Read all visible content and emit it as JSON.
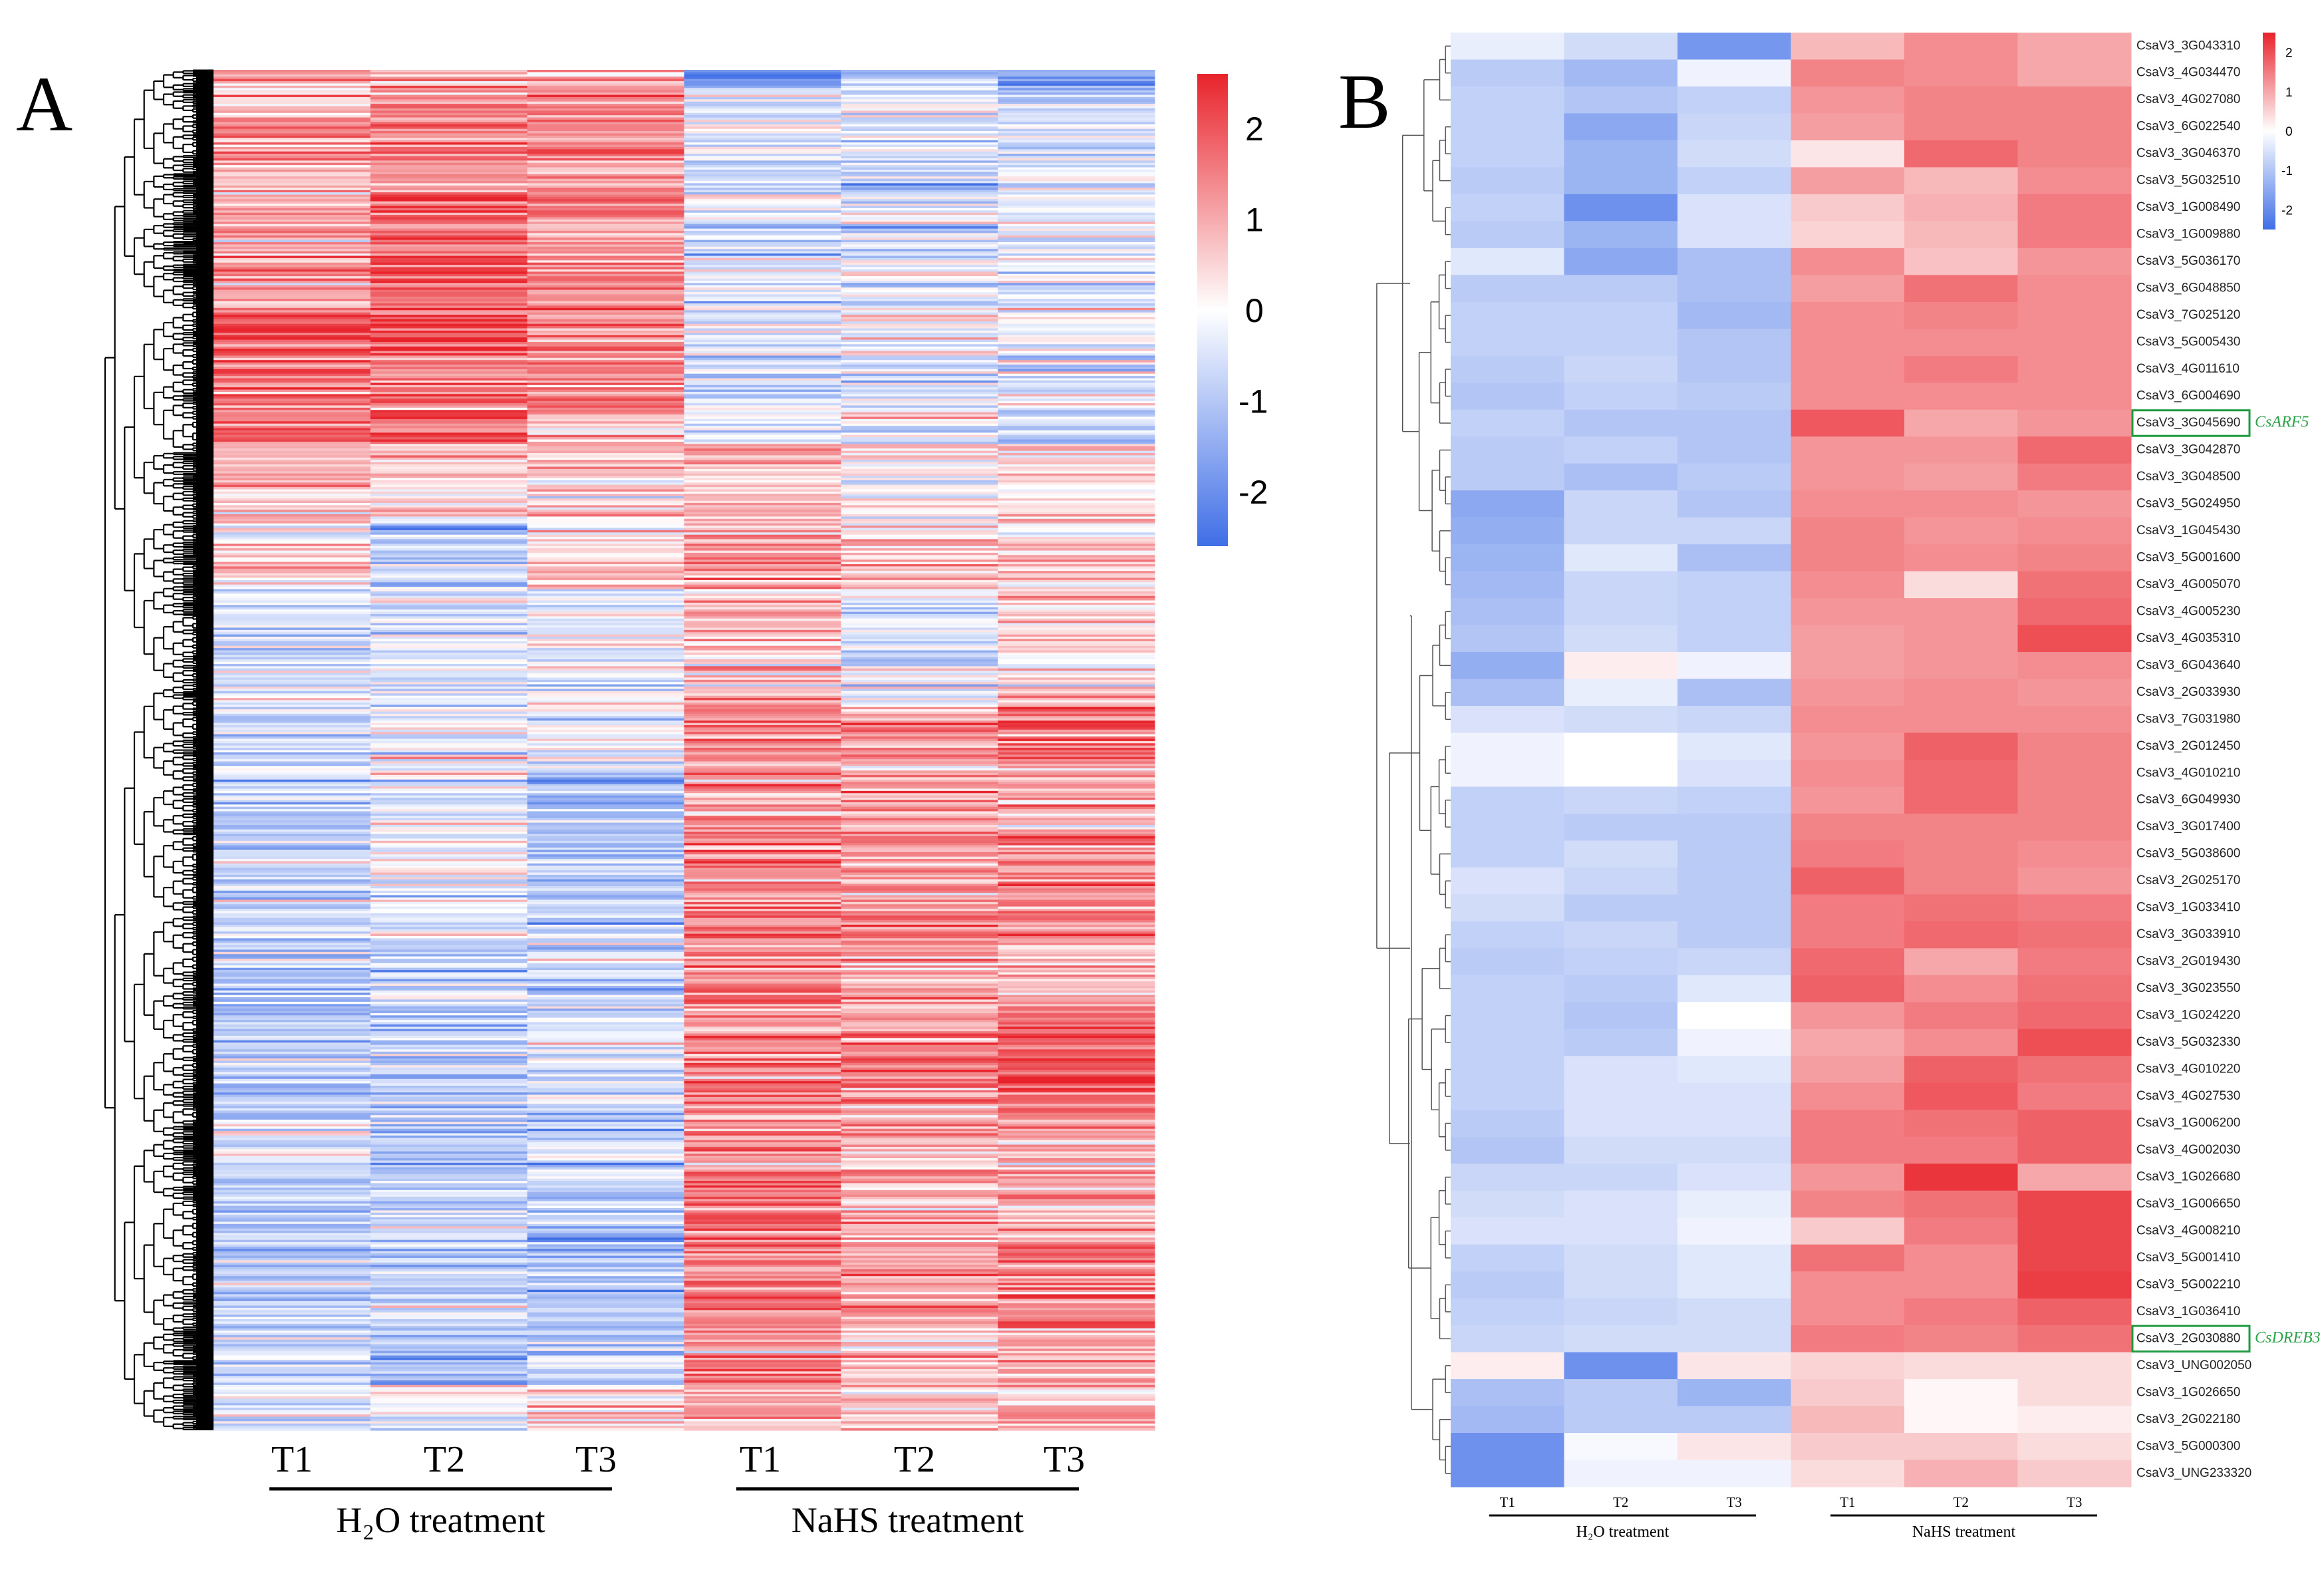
{
  "colors": {
    "high": "#e8232b",
    "mid": "#ffffff",
    "low": "#3f6ee6",
    "highlight_box": "#1f9a3f",
    "highlight_text": "#2aa44a"
  },
  "chart_data": [
    {
      "type": "heatmap",
      "panel": "A",
      "title": "",
      "columns": [
        "T1",
        "T2",
        "T3",
        "T1",
        "T2",
        "T3"
      ],
      "groups": [
        {
          "label": "H₂O  treatment",
          "columns": [
            0,
            1,
            2
          ]
        },
        {
          "label": "NaHS  treatment",
          "columns": [
            3,
            4,
            5
          ]
        }
      ],
      "colorbar": {
        "ticks": [
          "2",
          "1",
          "0",
          "-1",
          "-2"
        ],
        "range": [
          -2.6,
          2.6
        ]
      },
      "row_dendrogram": true,
      "n_rows_rendered": 600,
      "row_noise_sd": 0.55,
      "segments": [
        {
          "fraction": 0.014,
          "means": [
            1.0,
            1.0,
            1.0,
            -2.0,
            -1.0,
            -1.5
          ]
        },
        {
          "fraction": 0.076,
          "means": [
            1.0,
            1.3,
            1.3,
            -0.5,
            -0.5,
            -0.5
          ]
        },
        {
          "fraction": 0.087,
          "means": [
            1.0,
            1.9,
            1.3,
            -0.3,
            -0.5,
            -0.3
          ]
        },
        {
          "fraction": 0.076,
          "means": [
            1.8,
            1.8,
            1.4,
            -0.5,
            -0.3,
            -0.3
          ]
        },
        {
          "fraction": 0.022,
          "means": [
            1.5,
            1.8,
            0.5,
            -0.5,
            -0.5,
            -0.8
          ]
        },
        {
          "fraction": 0.054,
          "means": [
            0.8,
            0.5,
            0.5,
            0.8,
            0.0,
            0.3
          ]
        },
        {
          "fraction": 0.054,
          "means": [
            0.5,
            -0.8,
            0.3,
            1.0,
            0.5,
            0.5
          ]
        },
        {
          "fraction": 0.087,
          "means": [
            -0.7,
            -0.3,
            -0.3,
            0.5,
            -0.3,
            0.5
          ]
        },
        {
          "fraction": 0.044,
          "means": [
            -0.5,
            0.0,
            0.0,
            1.5,
            1.2,
            1.8
          ]
        },
        {
          "fraction": 0.044,
          "means": [
            -0.5,
            -0.3,
            -1.0,
            1.2,
            1.2,
            1.0
          ]
        },
        {
          "fraction": 0.087,
          "means": [
            -0.8,
            -0.3,
            -1.0,
            1.3,
            1.2,
            1.3
          ]
        },
        {
          "fraction": 0.044,
          "means": [
            -0.8,
            -0.8,
            -0.8,
            1.2,
            1.3,
            0.8
          ]
        },
        {
          "fraction": 0.087,
          "means": [
            -1.0,
            -1.0,
            -0.7,
            1.2,
            1.2,
            1.7
          ]
        },
        {
          "fraction": 0.044,
          "means": [
            -0.5,
            -1.2,
            -0.5,
            1.3,
            1.0,
            1.0
          ]
        },
        {
          "fraction": 0.044,
          "means": [
            -0.8,
            -0.8,
            -0.8,
            1.7,
            1.0,
            1.0
          ]
        },
        {
          "fraction": 0.065,
          "means": [
            -1.0,
            -0.7,
            -1.0,
            1.3,
            1.0,
            1.5
          ]
        },
        {
          "fraction": 0.044,
          "means": [
            -0.8,
            -1.0,
            -0.8,
            1.3,
            0.8,
            1.0
          ]
        },
        {
          "fraction": 0.027,
          "means": [
            -0.5,
            0.0,
            0.5,
            1.0,
            0.5,
            0.8
          ]
        }
      ]
    },
    {
      "type": "heatmap",
      "panel": "B",
      "columns": [
        "T1",
        "T2",
        "T3",
        "T1",
        "T2",
        "T3"
      ],
      "groups": [
        {
          "label": "H₂O  treatment",
          "columns": [
            0,
            1,
            2
          ]
        },
        {
          "label": "NaHS  treatment",
          "columns": [
            3,
            4,
            5
          ]
        }
      ],
      "colorbar": {
        "ticks": [
          "2",
          "1",
          "0",
          "-1",
          "-2"
        ],
        "range": [
          -2.5,
          2.5
        ]
      },
      "highlights": [
        {
          "gene": "CsaV3_3G045690",
          "label": "CsARF5"
        },
        {
          "gene": "CsaV3_2G030880",
          "label": "CsDREB3"
        }
      ],
      "rows": [
        {
          "gene": "CsaV3_3G043310",
          "values": [
            -0.3,
            -0.6,
            -1.8,
            0.8,
            1.3,
            1.0
          ]
        },
        {
          "gene": "CsaV3_4G034470",
          "values": [
            -0.9,
            -1.2,
            -0.2,
            1.4,
            1.3,
            1.0
          ]
        },
        {
          "gene": "CsaV3_4G027080",
          "values": [
            -0.8,
            -1.0,
            -0.8,
            1.2,
            1.4,
            1.4
          ]
        },
        {
          "gene": "CsaV3_6G022540",
          "values": [
            -0.8,
            -1.5,
            -0.7,
            1.1,
            1.4,
            1.4
          ]
        },
        {
          "gene": "CsaV3_3G046370",
          "values": [
            -0.8,
            -1.3,
            -0.6,
            0.3,
            1.7,
            1.4
          ]
        },
        {
          "gene": "CsaV3_5G032510",
          "values": [
            -0.9,
            -1.3,
            -0.8,
            1.1,
            0.8,
            1.3
          ]
        },
        {
          "gene": "CsaV3_1G008490",
          "values": [
            -0.8,
            -1.9,
            -0.5,
            0.6,
            0.9,
            1.5
          ]
        },
        {
          "gene": "CsaV3_1G009880",
          "values": [
            -0.9,
            -1.3,
            -0.5,
            0.5,
            0.8,
            1.5
          ]
        },
        {
          "gene": "CsaV3_5G036170",
          "values": [
            -0.4,
            -1.5,
            -1.1,
            1.3,
            0.7,
            1.2
          ]
        },
        {
          "gene": "CsaV3_6G048850",
          "values": [
            -0.9,
            -0.9,
            -1.1,
            1.1,
            1.6,
            1.3
          ]
        },
        {
          "gene": "CsaV3_7G025120",
          "values": [
            -0.8,
            -0.8,
            -1.2,
            1.3,
            1.4,
            1.3
          ]
        },
        {
          "gene": "CsaV3_5G005430",
          "values": [
            -0.8,
            -0.8,
            -1.0,
            1.3,
            1.3,
            1.3
          ]
        },
        {
          "gene": "CsaV3_4G011610",
          "values": [
            -0.9,
            -0.7,
            -1.0,
            1.3,
            1.5,
            1.3
          ]
        },
        {
          "gene": "CsaV3_6G004690",
          "values": [
            -1.0,
            -0.8,
            -0.9,
            1.3,
            1.3,
            1.3
          ]
        },
        {
          "gene": "CsaV3_3G045690",
          "values": [
            -0.8,
            -1.0,
            -1.0,
            1.9,
            1.0,
            1.2
          ]
        },
        {
          "gene": "CsaV3_3G042870",
          "values": [
            -0.9,
            -0.8,
            -1.0,
            1.2,
            1.2,
            1.7
          ]
        },
        {
          "gene": "CsaV3_3G048500",
          "values": [
            -0.9,
            -1.1,
            -0.9,
            1.2,
            1.1,
            1.5
          ]
        },
        {
          "gene": "CsaV3_5G024950",
          "values": [
            -1.5,
            -0.7,
            -1.0,
            1.3,
            1.3,
            1.2
          ]
        },
        {
          "gene": "CsaV3_1G045430",
          "values": [
            -1.4,
            -0.7,
            -0.7,
            1.4,
            1.2,
            1.3
          ]
        },
        {
          "gene": "CsaV3_5G001600",
          "values": [
            -1.3,
            -0.4,
            -1.1,
            1.4,
            1.3,
            1.4
          ]
        },
        {
          "gene": "CsaV3_4G005070",
          "values": [
            -1.2,
            -0.7,
            -0.8,
            1.3,
            0.4,
            1.6
          ]
        },
        {
          "gene": "CsaV3_4G005230",
          "values": [
            -1.1,
            -0.7,
            -0.8,
            1.2,
            1.2,
            1.7
          ]
        },
        {
          "gene": "CsaV3_4G035310",
          "values": [
            -1.0,
            -0.6,
            -0.8,
            1.1,
            1.2,
            2.0
          ]
        },
        {
          "gene": "CsaV3_6G043640",
          "values": [
            -1.4,
            0.2,
            -0.2,
            1.1,
            1.2,
            1.3
          ]
        },
        {
          "gene": "CsaV3_2G033930",
          "values": [
            -1.1,
            -0.3,
            -1.1,
            1.2,
            1.3,
            1.2
          ]
        },
        {
          "gene": "CsaV3_7G031980",
          "values": [
            -0.5,
            -0.6,
            -0.7,
            1.3,
            1.3,
            1.3
          ]
        },
        {
          "gene": "CsaV3_2G012450",
          "values": [
            -0.2,
            0.0,
            -0.4,
            1.2,
            1.8,
            1.4
          ]
        },
        {
          "gene": "CsaV3_4G010210",
          "values": [
            -0.2,
            0.0,
            -0.5,
            1.3,
            1.7,
            1.4
          ]
        },
        {
          "gene": "CsaV3_6G049930",
          "values": [
            -0.8,
            -0.7,
            -0.8,
            1.2,
            1.7,
            1.4
          ]
        },
        {
          "gene": "CsaV3_3G017400",
          "values": [
            -0.8,
            -0.9,
            -0.9,
            1.4,
            1.4,
            1.4
          ]
        },
        {
          "gene": "CsaV3_5G038600",
          "values": [
            -0.8,
            -0.6,
            -0.9,
            1.5,
            1.4,
            1.3
          ]
        },
        {
          "gene": "CsaV3_2G025170",
          "values": [
            -0.5,
            -0.7,
            -0.9,
            1.8,
            1.4,
            1.2
          ]
        },
        {
          "gene": "CsaV3_1G033410",
          "values": [
            -0.6,
            -0.9,
            -0.9,
            1.5,
            1.6,
            1.5
          ]
        },
        {
          "gene": "CsaV3_3G033910",
          "values": [
            -0.8,
            -0.7,
            -0.9,
            1.5,
            1.7,
            1.6
          ]
        },
        {
          "gene": "CsaV3_2G019430",
          "values": [
            -0.9,
            -0.8,
            -0.7,
            1.7,
            1.0,
            1.5
          ]
        },
        {
          "gene": "CsaV3_3G023550",
          "values": [
            -0.8,
            -0.9,
            -0.4,
            1.8,
            1.3,
            1.6
          ]
        },
        {
          "gene": "CsaV3_1G024220",
          "values": [
            -0.8,
            -1.0,
            0.0,
            1.2,
            1.5,
            1.7
          ]
        },
        {
          "gene": "CsaV3_5G032330",
          "values": [
            -0.8,
            -0.9,
            -0.2,
            1.0,
            1.3,
            2.0
          ]
        },
        {
          "gene": "CsaV3_4G010220",
          "values": [
            -0.8,
            -0.5,
            -0.4,
            1.1,
            1.8,
            1.6
          ]
        },
        {
          "gene": "CsaV3_4G027530",
          "values": [
            -0.8,
            -0.5,
            -0.5,
            1.3,
            1.9,
            1.5
          ]
        },
        {
          "gene": "CsaV3_1G006200",
          "values": [
            -0.9,
            -0.5,
            -0.5,
            1.5,
            1.6,
            1.8
          ]
        },
        {
          "gene": "CsaV3_4G002030",
          "values": [
            -1.0,
            -0.6,
            -0.6,
            1.5,
            1.5,
            1.8
          ]
        },
        {
          "gene": "CsaV3_1G026680",
          "values": [
            -0.7,
            -0.7,
            -0.5,
            1.2,
            2.3,
            1.0
          ]
        },
        {
          "gene": "CsaV3_1G006650",
          "values": [
            -0.6,
            -0.5,
            -0.3,
            1.4,
            1.6,
            2.1
          ]
        },
        {
          "gene": "CsaV3_4G008210",
          "values": [
            -0.5,
            -0.5,
            -0.2,
            0.6,
            1.5,
            2.1
          ]
        },
        {
          "gene": "CsaV3_5G001410",
          "values": [
            -0.8,
            -0.6,
            -0.4,
            1.6,
            1.3,
            2.1
          ]
        },
        {
          "gene": "CsaV3_5G002210",
          "values": [
            -0.9,
            -0.6,
            -0.4,
            1.3,
            1.3,
            2.2
          ]
        },
        {
          "gene": "CsaV3_1G036410",
          "values": [
            -0.8,
            -0.7,
            -0.6,
            1.3,
            1.5,
            1.8
          ]
        },
        {
          "gene": "CsaV3_2G030880",
          "values": [
            -0.7,
            -0.6,
            -0.6,
            1.5,
            1.4,
            1.6
          ]
        },
        {
          "gene": "CsaV3_UNG002050",
          "values": [
            0.2,
            -1.9,
            0.3,
            0.5,
            0.4,
            0.4
          ]
        },
        {
          "gene": "CsaV3_1G026650",
          "values": [
            -1.1,
            -0.9,
            -1.3,
            0.6,
            0.1,
            0.4
          ]
        },
        {
          "gene": "CsaV3_2G022180",
          "values": [
            -1.2,
            -0.9,
            -0.9,
            0.8,
            0.1,
            0.2
          ]
        },
        {
          "gene": "CsaV3_5G000300",
          "values": [
            -1.9,
            -0.1,
            0.3,
            0.6,
            0.6,
            0.4
          ]
        },
        {
          "gene": "CsaV3_UNG233320",
          "values": [
            -1.9,
            -0.2,
            -0.2,
            0.4,
            0.9,
            0.6
          ]
        }
      ]
    }
  ],
  "labels": {
    "panel_a": "A",
    "panel_b": "B"
  }
}
